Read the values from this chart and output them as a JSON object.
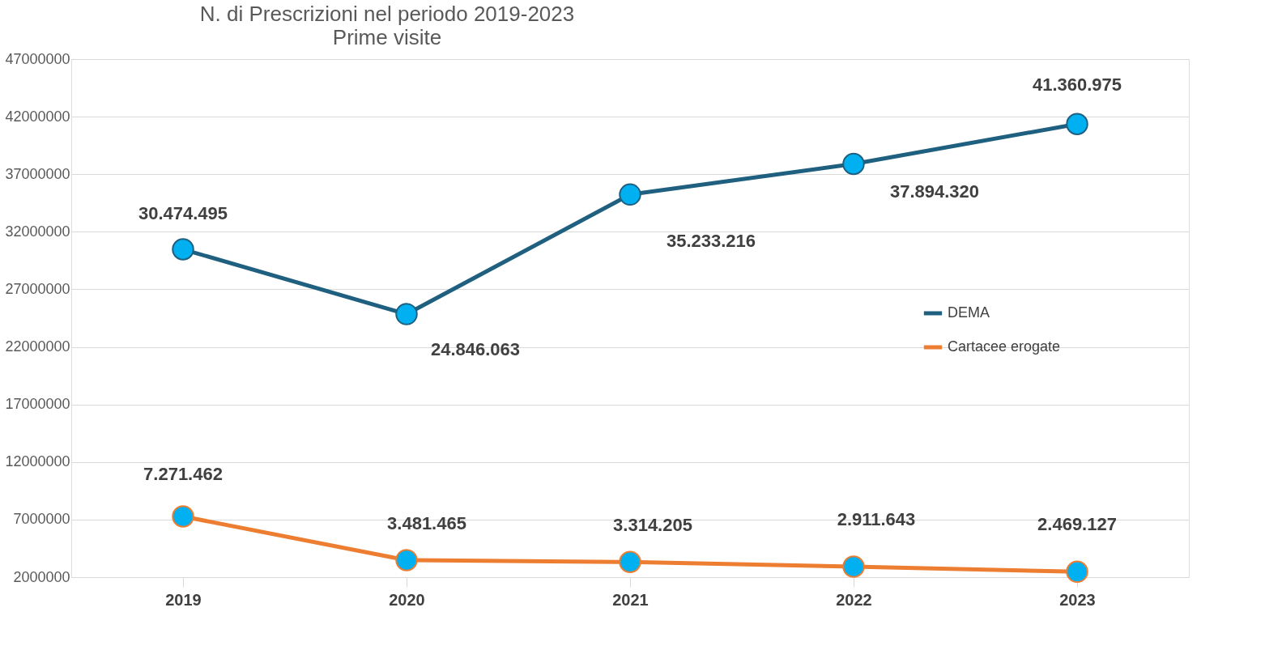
{
  "chart_data": {
    "type": "line",
    "title": "N. di Prescrizioni  nel periodo 2019-2023",
    "subtitle": "Prime visite",
    "categories": [
      "2019",
      "2020",
      "2021",
      "2022",
      "2023"
    ],
    "series": [
      {
        "name": "DEMA",
        "color": "#1f5f7f",
        "values": [
          30474495,
          24846063,
          35233216,
          37894320,
          41360975
        ],
        "value_labels": [
          "30.474.495",
          "24.846.063",
          "35.233.216",
          "37.894.320",
          "41.360.975"
        ]
      },
      {
        "name": "Cartacee erogate",
        "color": "#ed7d31",
        "values": [
          7271462,
          3481465,
          3314205,
          2911643,
          2469127
        ],
        "value_labels": [
          "7.271.462",
          "3.481.465",
          "3.314.205",
          "2.911.643",
          "2.469.127"
        ]
      }
    ],
    "ylim": [
      2000000,
      47000000
    ],
    "yticks": [
      2000000,
      7000000,
      12000000,
      17000000,
      22000000,
      27000000,
      32000000,
      37000000,
      42000000,
      47000000
    ],
    "grid": "y",
    "legend": "right",
    "marker": "circle",
    "line_style": "solid"
  }
}
